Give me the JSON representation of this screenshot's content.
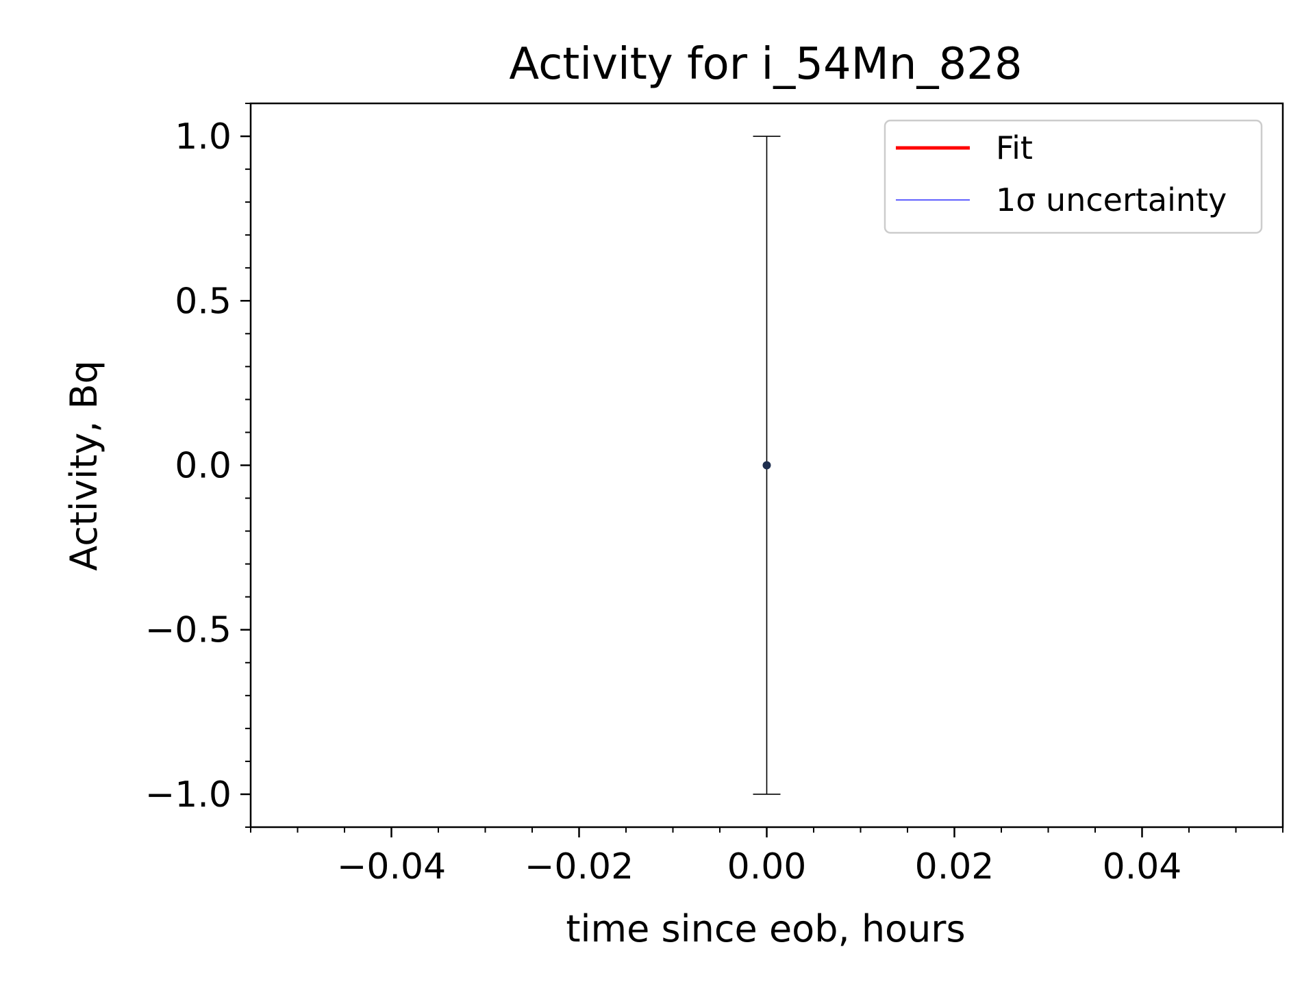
{
  "chart_data": {
    "type": "scatter",
    "title": "Activity for i_54Mn_828",
    "xlabel": "time since eob, hours",
    "ylabel": "Activity, Bq",
    "xlim": [
      -0.055,
      0.055
    ],
    "ylim": [
      -1.1,
      1.1
    ],
    "x_ticks": [
      -0.04,
      -0.02,
      0.0,
      0.02,
      0.04
    ],
    "x_tick_labels": [
      "−0.04",
      "−0.02",
      "0.00",
      "0.02",
      "0.04"
    ],
    "x_minor_step": 0.005,
    "y_ticks": [
      -1.0,
      -0.5,
      0.0,
      0.5,
      1.0
    ],
    "y_tick_labels": [
      "−1.0",
      "−0.5",
      "0.0",
      "0.5",
      "1.0"
    ],
    "y_minor_step": 0.1,
    "grid": false,
    "legend_position": "top-right",
    "series": [
      {
        "name": "Fit",
        "kind": "line",
        "color": "#ff0000",
        "x": [],
        "y": []
      },
      {
        "name": "1σ uncertainty",
        "kind": "line",
        "color": "#0000ff",
        "x": [],
        "y": []
      }
    ],
    "points": [
      {
        "x": 0.0,
        "y": 0.0,
        "yerr": 1.0
      }
    ],
    "point_color": "#1f2f4f",
    "errorbar_color": "#000000"
  }
}
